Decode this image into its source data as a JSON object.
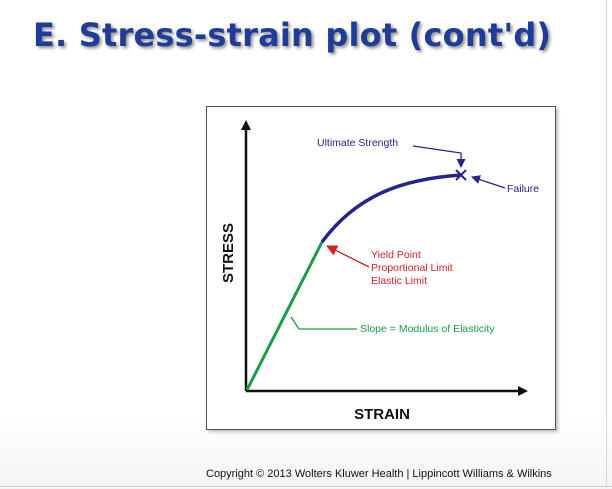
{
  "slide": {
    "title": "E. Stress-strain plot (cont'd)",
    "copyright": "Copyright © 2013 Wolters Kluwer Health | Lippincott Williams & Wilkins"
  },
  "diagram": {
    "y_axis_label": "STRESS",
    "x_axis_label": "STRAIN",
    "annotations": {
      "ultimate_strength": "Ultimate Strength",
      "failure": "Failure",
      "yield_point": "Yield Point",
      "proportional_limit": "Proportional Limit",
      "elastic_limit": "Elastic Limit",
      "slope": "Slope = Modulus of Elasticity"
    },
    "colors": {
      "elastic_segment": "#1a9c48",
      "plastic_segment": "#25238e",
      "yield_annotation": "#d62020",
      "axes": "#111111"
    }
  }
}
